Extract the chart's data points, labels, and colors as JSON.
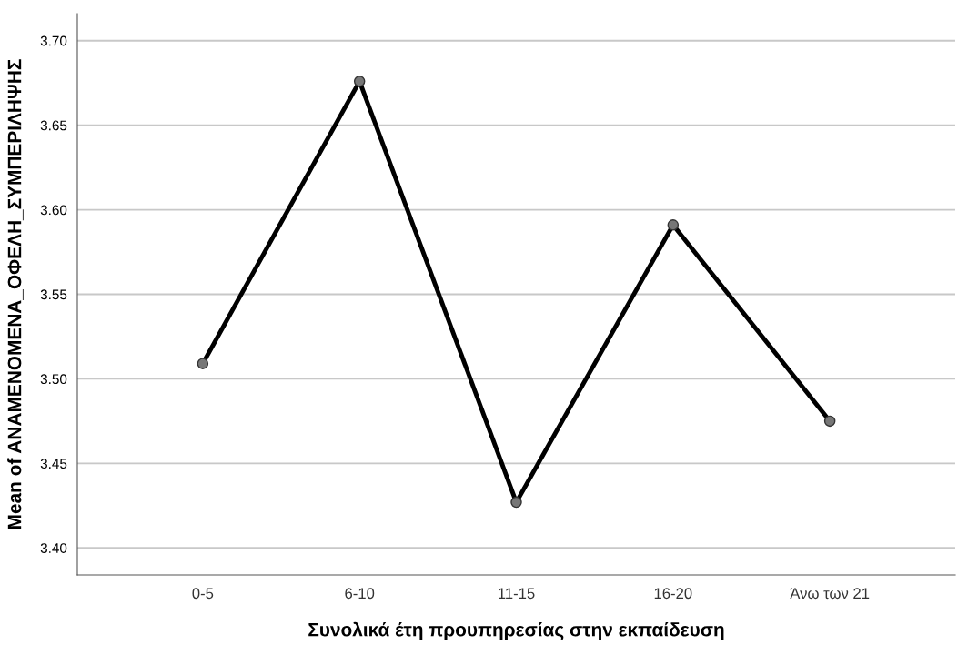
{
  "chart_data": {
    "type": "line",
    "xlabel": "Συνολικά έτη προυπηρεσίας στην εκπαίδευση",
    "ylabel": "Mean of ΑΝΑΜΕΝΟΜΕΝΑ_ΟΦΕΛΗ_ΣΥΜΠΕΡΙΛΗΨΗΣ",
    "categories": [
      "0-5",
      "6-10",
      "11-15",
      "16-20",
      "Άνω των 21"
    ],
    "series": [
      {
        "color": "#000000",
        "values": [
          3.509,
          3.676,
          3.427,
          3.591,
          3.475
        ]
      }
    ],
    "ylim": [
      3.384,
      3.716
    ],
    "yticks": [
      {
        "value": 3.4,
        "label": "3.40"
      },
      {
        "value": 3.45,
        "label": "3.45"
      },
      {
        "value": 3.5,
        "label": "3.50"
      },
      {
        "value": 3.55,
        "label": "3.55"
      },
      {
        "value": 3.6,
        "label": "3.60"
      },
      {
        "value": 3.65,
        "label": "3.65"
      },
      {
        "value": 3.7,
        "label": "3.70"
      }
    ],
    "grid": "y",
    "marker": "circle",
    "line_style": "solid"
  }
}
